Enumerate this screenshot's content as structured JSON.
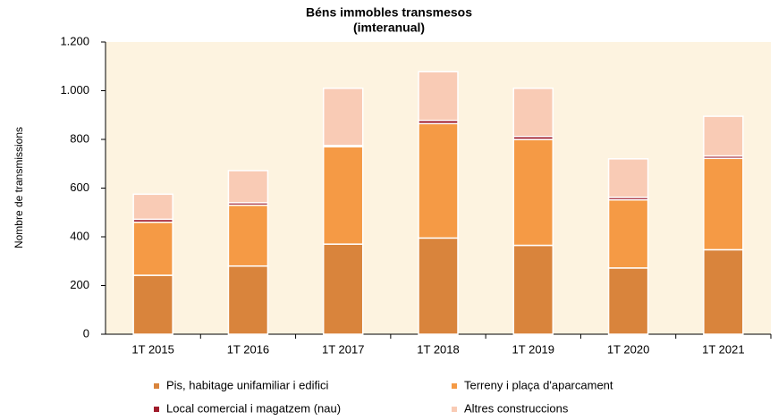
{
  "chart_data": {
    "type": "stacked_bar",
    "title": "Béns immobles transmesos",
    "subtitle": "(imteranual)",
    "y_label": "Nombre de transmissions",
    "categories": [
      "1T 2015",
      "1T 2016",
      "1T 2017",
      "1T 2018",
      "1T 2019",
      "1T 2020",
      "1T 2021"
    ],
    "series": [
      {
        "name": "Pis, habitage unifamiliar i edifici",
        "color": "#d9843c",
        "values": [
          242,
          280,
          370,
          395,
          365,
          272,
          347
        ]
      },
      {
        "name": "Terreny i plaça d'aparcament",
        "color": "#f59a45",
        "values": [
          218,
          250,
          400,
          470,
          435,
          280,
          375
        ]
      },
      {
        "name": "Local comercial i magatzem (nau)",
        "color": "#a01c2c",
        "values": [
          12,
          10,
          5,
          13,
          12,
          10,
          10
        ]
      },
      {
        "name": "Altres construccions",
        "color": "#f9cbb5",
        "values": [
          103,
          132,
          235,
          200,
          198,
          158,
          163
        ]
      }
    ],
    "ylim": [
      0,
      1200
    ],
    "yticks": [
      0,
      200,
      400,
      600,
      800,
      {
        "value": 1000,
        "label": "1.000"
      },
      {
        "value": 1200,
        "label": "1.200"
      }
    ],
    "plot_background": "#fdf3e0"
  }
}
